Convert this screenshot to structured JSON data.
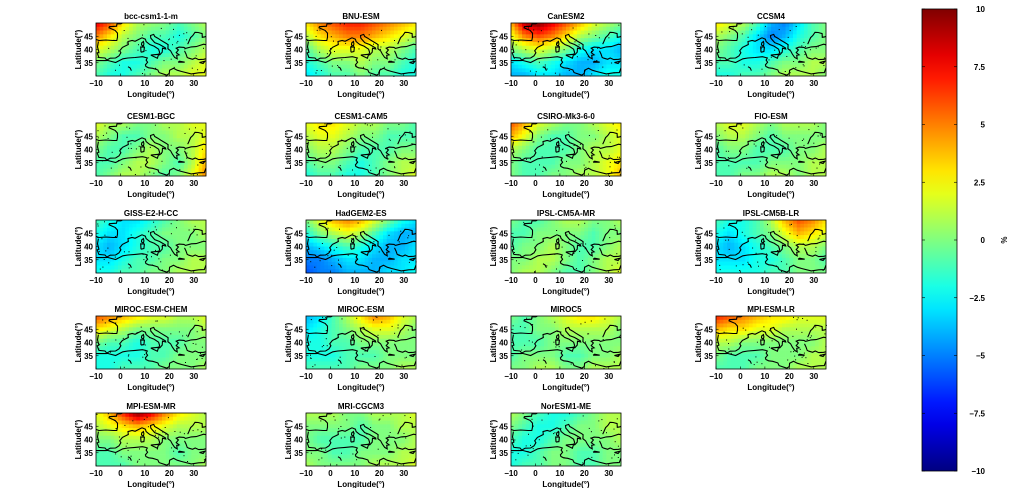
{
  "chart_data": {
    "type": "heatmap",
    "panels": [
      {
        "title": "bcc-csm1-1-m",
        "field": [
          [
            8,
            6,
            3,
            1,
            0.5,
            0,
            -1,
            0,
            1
          ],
          [
            5,
            3,
            1,
            0,
            -1,
            -1,
            -2,
            -1,
            0
          ],
          [
            2,
            1,
            0,
            -1,
            -2,
            -2,
            -1,
            0,
            1
          ],
          [
            0,
            -1,
            -2,
            -2,
            -1,
            0,
            0,
            1,
            2
          ],
          [
            -1,
            -2,
            -2,
            -1,
            0,
            1,
            1,
            2,
            2
          ]
        ]
      },
      {
        "title": "BNU-ESM",
        "field": [
          [
            3,
            5,
            6,
            7,
            7,
            6,
            5,
            4,
            3
          ],
          [
            1,
            3,
            4,
            5,
            5,
            4,
            3,
            2,
            1
          ],
          [
            -1,
            1,
            2,
            2,
            2,
            1,
            1,
            0,
            -1
          ],
          [
            -2,
            -1,
            0,
            0,
            1,
            0,
            0,
            -1,
            -2
          ],
          [
            -3,
            -2,
            -1,
            -1,
            0,
            -1,
            -1,
            -2,
            -2
          ]
        ]
      },
      {
        "title": "CanESM2",
        "field": [
          [
            4,
            9,
            10,
            8,
            6,
            4,
            2,
            1,
            0
          ],
          [
            2,
            5,
            6,
            5,
            3,
            1,
            0,
            -1,
            -2
          ],
          [
            0,
            1,
            2,
            1,
            0,
            -2,
            -3,
            -3,
            -4
          ],
          [
            -3,
            -2,
            -1,
            -2,
            -3,
            -4,
            -4,
            -3,
            -3
          ],
          [
            -4,
            -4,
            -3,
            -3,
            -4,
            -4,
            -3,
            -2,
            -2
          ]
        ]
      },
      {
        "title": "CCSM4",
        "field": [
          [
            3,
            2,
            1,
            -1,
            -4,
            -5,
            -3,
            -1,
            0
          ],
          [
            1,
            0,
            -1,
            -3,
            -5,
            -4,
            -2,
            -1,
            0
          ],
          [
            0,
            -1,
            -2,
            -3,
            -3,
            -2,
            -1,
            0,
            0
          ],
          [
            -1,
            -1,
            -2,
            -2,
            -1,
            0,
            0,
            1,
            1
          ],
          [
            -2,
            -2,
            -1,
            -1,
            0,
            1,
            1,
            1,
            0
          ]
        ]
      },
      {
        "title": "CESM1-BGC",
        "field": [
          [
            2,
            1,
            1,
            0,
            0,
            1,
            1,
            2,
            2
          ],
          [
            1,
            0,
            -1,
            -1,
            0,
            0,
            1,
            1,
            2
          ],
          [
            0,
            -1,
            -1,
            0,
            1,
            0,
            0,
            1,
            3
          ],
          [
            -1,
            -1,
            0,
            1,
            1,
            0,
            -1,
            1,
            4
          ],
          [
            -1,
            0,
            1,
            1,
            0,
            -1,
            0,
            2,
            5
          ]
        ]
      },
      {
        "title": "CESM1-CAM5",
        "field": [
          [
            2,
            3,
            3,
            2,
            1,
            1,
            0,
            0,
            -1
          ],
          [
            1,
            2,
            2,
            1,
            0,
            0,
            -1,
            -1,
            -1
          ],
          [
            0,
            1,
            1,
            0,
            -1,
            -1,
            -1,
            0,
            0
          ],
          [
            -1,
            0,
            0,
            -1,
            -2,
            -1,
            0,
            1,
            1
          ],
          [
            -2,
            -1,
            -1,
            -2,
            -2,
            -1,
            0,
            1,
            2
          ]
        ]
      },
      {
        "title": "CSIRO-Mk3-6-0",
        "field": [
          [
            6,
            4,
            2,
            1,
            0,
            0,
            1,
            2,
            3
          ],
          [
            4,
            2,
            0,
            -1,
            -1,
            0,
            0,
            1,
            2
          ],
          [
            1,
            0,
            -1,
            -1,
            -1,
            0,
            1,
            1,
            2
          ],
          [
            0,
            -1,
            -1,
            -1,
            0,
            0,
            1,
            2,
            3
          ],
          [
            0,
            -1,
            -1,
            0,
            0,
            1,
            1,
            2,
            4
          ]
        ]
      },
      {
        "title": "FIO-ESM",
        "field": [
          [
            1,
            2,
            2,
            1,
            0,
            1,
            1,
            1,
            0
          ],
          [
            0,
            1,
            1,
            0,
            -1,
            0,
            0,
            0,
            0
          ],
          [
            -1,
            0,
            0,
            -1,
            -1,
            -1,
            0,
            0,
            1
          ],
          [
            -1,
            -1,
            -1,
            -1,
            0,
            0,
            0,
            1,
            1
          ],
          [
            -1,
            -1,
            0,
            0,
            1,
            1,
            0,
            1,
            1
          ]
        ]
      },
      {
        "title": "GISS-E2-H-CC",
        "field": [
          [
            -1,
            -2,
            -3,
            -3,
            -2,
            -1,
            0,
            1,
            1
          ],
          [
            -2,
            -3,
            -3,
            -2,
            -1,
            0,
            0,
            0,
            1
          ],
          [
            -3,
            -4,
            -3,
            -2,
            -1,
            -1,
            0,
            0,
            0
          ],
          [
            -3,
            -3,
            -2,
            -1,
            -1,
            0,
            0,
            1,
            1
          ],
          [
            -2,
            -2,
            -1,
            -1,
            0,
            0,
            1,
            1,
            1
          ]
        ]
      },
      {
        "title": "HadGEM2-ES",
        "field": [
          [
            0,
            2,
            4,
            5,
            4,
            2,
            0,
            -2,
            -3
          ],
          [
            -2,
            0,
            1,
            2,
            1,
            -1,
            -3,
            -4,
            -4
          ],
          [
            -4,
            -3,
            -2,
            -1,
            -2,
            -3,
            -4,
            -4,
            -3
          ],
          [
            -5,
            -5,
            -4,
            -3,
            -3,
            -4,
            -4,
            -3,
            -3
          ],
          [
            -6,
            -5,
            -5,
            -4,
            -4,
            -4,
            -3,
            -3,
            -2
          ]
        ]
      },
      {
        "title": "IPSL-CM5A-MR",
        "field": [
          [
            0,
            -1,
            -1,
            0,
            1,
            1,
            0,
            0,
            1
          ],
          [
            -1,
            -1,
            0,
            0,
            0,
            0,
            -1,
            0,
            0
          ],
          [
            -1,
            0,
            0,
            1,
            0,
            -1,
            -1,
            0,
            1
          ],
          [
            0,
            0,
            1,
            1,
            0,
            -1,
            0,
            1,
            1
          ],
          [
            0,
            1,
            1,
            0,
            -1,
            -1,
            0,
            1,
            2
          ]
        ]
      },
      {
        "title": "IPSL-CM5B-LR",
        "field": [
          [
            -1,
            -2,
            -2,
            -1,
            1,
            4,
            6,
            5,
            3
          ],
          [
            -2,
            -3,
            -2,
            -1,
            0,
            2,
            4,
            3,
            2
          ],
          [
            -3,
            -4,
            -3,
            -2,
            -1,
            0,
            1,
            1,
            0
          ],
          [
            -3,
            -3,
            -3,
            -2,
            -2,
            -1,
            0,
            0,
            -1
          ],
          [
            -2,
            -2,
            -2,
            -2,
            -1,
            -1,
            0,
            0,
            0
          ]
        ]
      },
      {
        "title": "MIROC-ESM-CHEM",
        "field": [
          [
            6,
            5,
            4,
            3,
            2,
            2,
            1,
            1,
            2
          ],
          [
            3,
            2,
            1,
            0,
            0,
            0,
            0,
            0,
            1
          ],
          [
            0,
            -1,
            -1,
            -2,
            -1,
            -1,
            -1,
            0,
            0
          ],
          [
            -2,
            -2,
            -2,
            -2,
            -1,
            -1,
            0,
            0,
            0
          ],
          [
            -2,
            -2,
            -1,
            -1,
            -1,
            0,
            0,
            0,
            1
          ]
        ]
      },
      {
        "title": "MIROC-ESM",
        "field": [
          [
            -4,
            -3,
            -1,
            1,
            3,
            5,
            4,
            2,
            1
          ],
          [
            -3,
            -2,
            -1,
            0,
            1,
            2,
            2,
            1,
            0
          ],
          [
            -2,
            -2,
            -1,
            -1,
            0,
            0,
            0,
            0,
            0
          ],
          [
            -2,
            -2,
            -2,
            -1,
            -1,
            -1,
            0,
            0,
            0
          ],
          [
            -1,
            -1,
            -1,
            -1,
            0,
            0,
            0,
            1,
            1
          ]
        ]
      },
      {
        "title": "MIROC5",
        "field": [
          [
            0,
            -1,
            0,
            1,
            2,
            3,
            3,
            2,
            1
          ],
          [
            -1,
            -1,
            0,
            0,
            1,
            1,
            1,
            1,
            0
          ],
          [
            -1,
            -1,
            -1,
            0,
            0,
            0,
            0,
            0,
            0
          ],
          [
            -1,
            0,
            0,
            0,
            -1,
            -1,
            0,
            0,
            1
          ],
          [
            0,
            0,
            1,
            1,
            0,
            0,
            1,
            1,
            1
          ]
        ]
      },
      {
        "title": "MPI-ESM-LR",
        "field": [
          [
            7,
            6,
            5,
            4,
            3,
            3,
            2,
            2,
            2
          ],
          [
            4,
            3,
            3,
            2,
            2,
            1,
            1,
            1,
            1
          ],
          [
            1,
            1,
            0,
            0,
            0,
            0,
            0,
            0,
            1
          ],
          [
            0,
            -1,
            -1,
            -1,
            0,
            0,
            0,
            1,
            1
          ],
          [
            -1,
            -1,
            -1,
            0,
            0,
            0,
            1,
            1,
            1
          ]
        ]
      },
      {
        "title": "MPI-ESM-MR",
        "field": [
          [
            2,
            4,
            7,
            10,
            8,
            5,
            3,
            2,
            1
          ],
          [
            1,
            2,
            3,
            4,
            3,
            2,
            1,
            1,
            1
          ],
          [
            0,
            0,
            1,
            1,
            1,
            0,
            0,
            0,
            0
          ],
          [
            -1,
            -1,
            0,
            0,
            0,
            0,
            -1,
            0,
            0
          ],
          [
            -1,
            -1,
            -1,
            0,
            0,
            0,
            0,
            0,
            1
          ]
        ]
      },
      {
        "title": "MRI-CGCM3",
        "field": [
          [
            1,
            1,
            1,
            0,
            0,
            1,
            1,
            1,
            2
          ],
          [
            0,
            0,
            0,
            0,
            -1,
            0,
            0,
            1,
            1
          ],
          [
            0,
            -1,
            -1,
            -1,
            -1,
            0,
            0,
            0,
            1
          ],
          [
            0,
            0,
            -1,
            -1,
            0,
            0,
            0,
            1,
            1
          ],
          [
            1,
            0,
            0,
            0,
            0,
            1,
            1,
            1,
            2
          ]
        ]
      },
      {
        "title": "NorESM1-ME",
        "field": [
          [
            1,
            0,
            -1,
            -2,
            -2,
            -1,
            0,
            1,
            1
          ],
          [
            0,
            -1,
            -2,
            -2,
            -1,
            0,
            0,
            1,
            1
          ],
          [
            -1,
            -2,
            -2,
            -1,
            0,
            0,
            0,
            0,
            1
          ],
          [
            -2,
            -2,
            -1,
            0,
            0,
            -1,
            -1,
            0,
            0
          ],
          [
            -2,
            -1,
            -1,
            0,
            0,
            -1,
            -1,
            0,
            0
          ]
        ]
      }
    ],
    "xlabel": "Longitude(°)",
    "ylabel": "Latitude(°)",
    "xlim": [
      -10,
      35
    ],
    "ylim": [
      30,
      50
    ],
    "xticks": [
      -10,
      0,
      10,
      20,
      30
    ],
    "xticklabels": [
      "−10",
      "0",
      "10",
      "20",
      "30"
    ],
    "yticks": [
      35,
      40,
      45
    ],
    "yticklabels": [
      "35",
      "40",
      "45"
    ],
    "colorbar": {
      "label": "%",
      "range": [
        -10,
        10
      ],
      "ticks": [
        10,
        7.5,
        5,
        2.5,
        0,
        -2.5,
        -5,
        -7.5,
        -10
      ],
      "ticklabels": [
        "10",
        "7.5",
        "5",
        "2.5",
        "0",
        "−2.5",
        "−5",
        "−7.5",
        "−10"
      ],
      "colormap": "jet"
    }
  }
}
